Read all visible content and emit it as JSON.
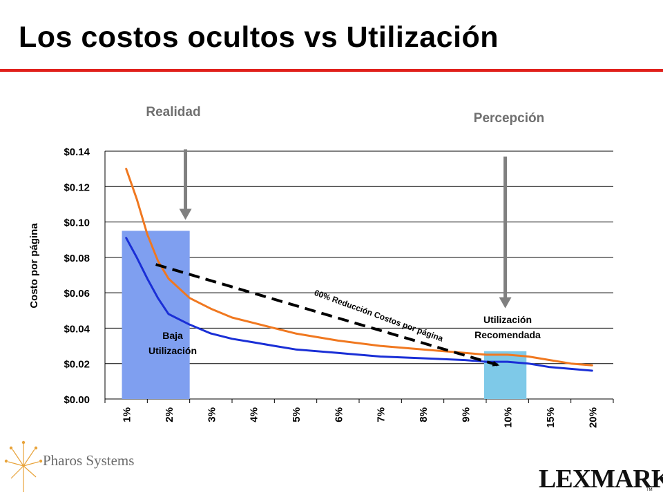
{
  "slide": {
    "title": "Los costos ocultos vs Utilización",
    "accent_color": "#e0201b"
  },
  "annotations": {
    "realidad": "Realidad",
    "percepcion": "Percepción",
    "baja_line1": "Baja",
    "baja_line2": "Utilización",
    "recomendada_line1": "Utilización",
    "recomendada_line2": "Recomendada",
    "reduccion": "60% Reducción Costos por página"
  },
  "footer": {
    "pharos_name": "Pharos Systems",
    "lexmark_name": "LEXMARK",
    "lexmark_tm": "TM"
  },
  "chart_data": {
    "type": "line",
    "title": "",
    "ylabel": "Costo por página",
    "xlabel": "",
    "categories": [
      "1%",
      "2%",
      "3%",
      "4%",
      "5%",
      "6%",
      "7%",
      "8%",
      "9%",
      "10%",
      "15%",
      "20%"
    ],
    "y_tick_labels": [
      "$0.00",
      "$0.02",
      "$0.04",
      "$0.06",
      "$0.08",
      "$0.10",
      "$0.12",
      "$0.14"
    ],
    "ylim": [
      0,
      0.14
    ],
    "grid": true,
    "series": [
      {
        "color": "#f07820",
        "x": [
          1,
          1.25,
          1.5,
          1.75,
          2,
          2.5,
          3,
          3.5,
          4,
          4.5,
          5,
          6,
          7,
          8,
          9,
          9.5,
          10,
          10.5,
          11,
          11.5,
          12
        ],
        "values": [
          0.13,
          0.113,
          0.093,
          0.078,
          0.068,
          0.057,
          0.051,
          0.046,
          0.043,
          0.04,
          0.037,
          0.033,
          0.03,
          0.028,
          0.026,
          0.025,
          0.025,
          0.024,
          0.022,
          0.02,
          0.019
        ]
      },
      {
        "color": "#1a2fd6",
        "x": [
          1,
          1.25,
          1.5,
          1.75,
          2,
          2.5,
          3,
          3.5,
          4,
          4.5,
          5,
          6,
          7,
          8,
          9,
          9.5,
          10,
          10.5,
          11,
          11.5,
          12
        ],
        "values": [
          0.091,
          0.08,
          0.068,
          0.057,
          0.048,
          0.042,
          0.037,
          0.034,
          0.032,
          0.03,
          0.028,
          0.026,
          0.024,
          0.023,
          0.022,
          0.021,
          0.021,
          0.02,
          0.018,
          0.017,
          0.016
        ]
      }
    ],
    "highlights": [
      {
        "name": "baja",
        "x_range": [
          0.9,
          2.5
        ],
        "y_top": 0.095,
        "color": "#7f9ff0"
      },
      {
        "name": "recomendada",
        "x_range": [
          9.45,
          10.45
        ],
        "y_top": 0.027,
        "color": "#7ec9e8"
      }
    ],
    "trend_arrow": {
      "from": [
        1.7,
        0.076
      ],
      "to": [
        9.8,
        0.019
      ],
      "color": "#000000"
    },
    "pointer_arrows": [
      {
        "label": "realidad",
        "x": 2.4,
        "y_from": 0.141,
        "y_to": 0.102,
        "color": "#808080"
      },
      {
        "label": "percepcion",
        "x": 9.95,
        "y_from": 0.137,
        "y_to": 0.052,
        "color": "#808080"
      }
    ]
  }
}
